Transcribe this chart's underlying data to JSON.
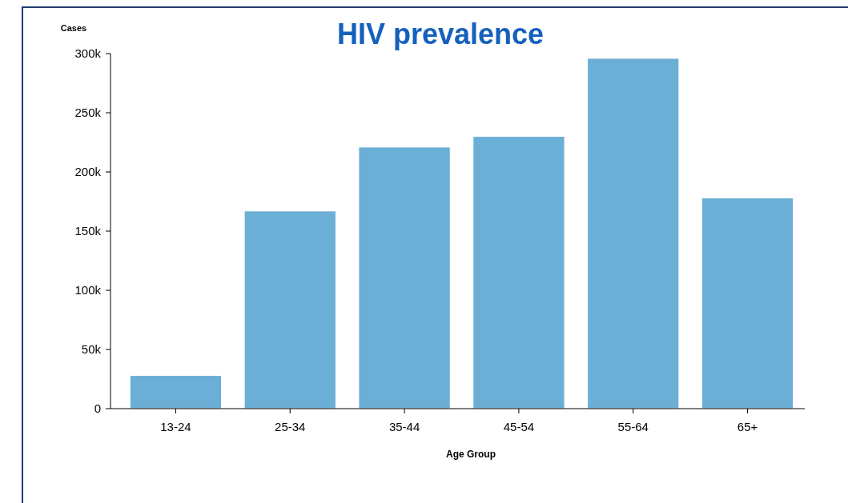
{
  "chart_data": {
    "type": "bar",
    "title": "HIV prevalence",
    "xlabel": "Age Group",
    "ylabel": "Cases",
    "categories": [
      "13-24",
      "25-34",
      "35-44",
      "45-54",
      "55-64",
      "65+"
    ],
    "values": [
      28000,
      167000,
      221000,
      230000,
      296000,
      178000
    ],
    "color": "#6baed6",
    "ylim": [
      0,
      300000
    ],
    "yticks": [
      {
        "value": 0,
        "label": "0"
      },
      {
        "value": 50000,
        "label": "50k"
      },
      {
        "value": 100000,
        "label": "100k"
      },
      {
        "value": 150000,
        "label": "150k"
      },
      {
        "value": 200000,
        "label": "200k"
      },
      {
        "value": 250000,
        "label": "250k"
      },
      {
        "value": 300000,
        "label": "300k"
      }
    ],
    "grid": false
  }
}
